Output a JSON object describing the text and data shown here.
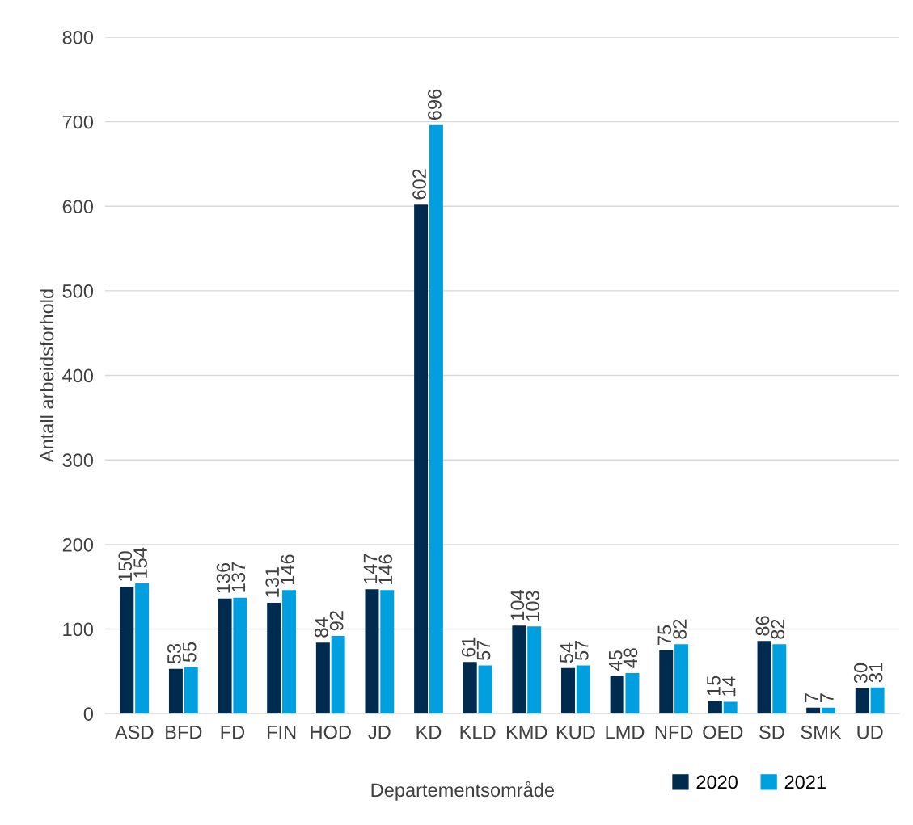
{
  "chart_data": {
    "type": "bar",
    "xlabel": "Departementsområde",
    "ylabel": "Antall arbeidsforhold",
    "categories": [
      "ASD",
      "BFD",
      "FD",
      "FIN",
      "HOD",
      "JD",
      "KD",
      "KLD",
      "KMD",
      "KUD",
      "LMD",
      "NFD",
      "OED",
      "SD",
      "SMK",
      "UD"
    ],
    "series": [
      {
        "name": "2020",
        "color": "#002a4e",
        "values": [
          150,
          53,
          136,
          131,
          84,
          147,
          602,
          61,
          104,
          54,
          45,
          75,
          15,
          86,
          7,
          30
        ]
      },
      {
        "name": "2021",
        "color": "#00a0e0",
        "values": [
          154,
          55,
          137,
          146,
          92,
          146,
          696,
          57,
          103,
          57,
          48,
          82,
          14,
          82,
          7,
          31
        ]
      }
    ],
    "ylim": [
      0,
      800
    ],
    "yticks": [
      0,
      100,
      200,
      300,
      400,
      500,
      600,
      700,
      800
    ],
    "grid": "y",
    "legend": "bottom right",
    "data_labels": true
  }
}
